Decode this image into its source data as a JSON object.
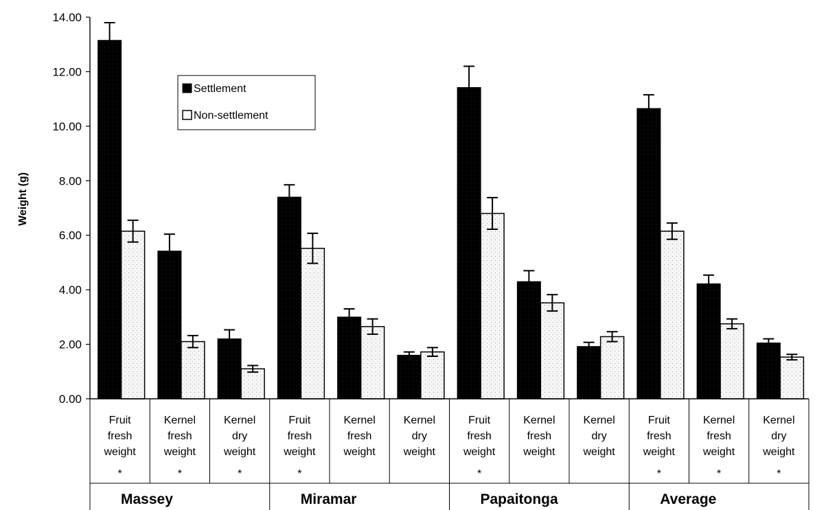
{
  "chart_data": {
    "type": "bar",
    "ylabel": "Weight (g)",
    "ylim": [
      0,
      14
    ],
    "yticks": [
      "0.00",
      "2.00",
      "4.00",
      "6.00",
      "8.00",
      "10.00",
      "12.00",
      "14.00"
    ],
    "legend_position": "top-left",
    "groups": [
      {
        "label": "Massey",
        "categories": [
          {
            "label": [
              "Fruit",
              "fresh",
              "weight"
            ],
            "mark": "*"
          },
          {
            "label": [
              "Kernel",
              "fresh",
              "weight"
            ],
            "mark": "*"
          },
          {
            "label": [
              "Kernel",
              "dry",
              "weight"
            ],
            "mark": "*"
          }
        ]
      },
      {
        "label": "Miramar",
        "categories": [
          {
            "label": [
              "Fruit",
              "fresh",
              "weight"
            ],
            "mark": "*"
          },
          {
            "label": [
              "Kernel",
              "fresh",
              "weight"
            ],
            "mark": ""
          },
          {
            "label": [
              "Kernel",
              "dry",
              "weight"
            ],
            "mark": ""
          }
        ]
      },
      {
        "label": "Papaitonga",
        "categories": [
          {
            "label": [
              "Fruit",
              "fresh",
              "weight"
            ],
            "mark": "*"
          },
          {
            "label": [
              "Kernel",
              "fresh",
              "weight"
            ],
            "mark": ""
          },
          {
            "label": [
              "Kernel",
              "dry",
              "weight"
            ],
            "mark": ""
          }
        ]
      },
      {
        "label": "Average",
        "categories": [
          {
            "label": [
              "Fruit",
              "fresh",
              "weight"
            ],
            "mark": "*"
          },
          {
            "label": [
              "Kernel",
              "fresh",
              "weight"
            ],
            "mark": "*"
          },
          {
            "label": [
              "Kernel",
              "dry",
              "weight"
            ],
            "mark": "*"
          }
        ]
      }
    ],
    "series": [
      {
        "name": "Settlement",
        "color": "#000000",
        "values": [
          13.15,
          5.42,
          2.2,
          7.4,
          3.0,
          1.6,
          11.42,
          4.3,
          1.92,
          10.65,
          4.22,
          2.05
        ],
        "errors": [
          0.65,
          0.62,
          0.33,
          0.45,
          0.3,
          0.12,
          0.78,
          0.4,
          0.15,
          0.5,
          0.32,
          0.15
        ]
      },
      {
        "name": "Non-settlement",
        "color": "#f2f2f2",
        "values": [
          6.15,
          2.1,
          1.1,
          5.52,
          2.65,
          1.72,
          6.8,
          3.52,
          2.28,
          6.15,
          2.75,
          1.53
        ],
        "errors": [
          0.4,
          0.22,
          0.12,
          0.55,
          0.28,
          0.16,
          0.58,
          0.3,
          0.18,
          0.3,
          0.18,
          0.1
        ]
      }
    ]
  }
}
